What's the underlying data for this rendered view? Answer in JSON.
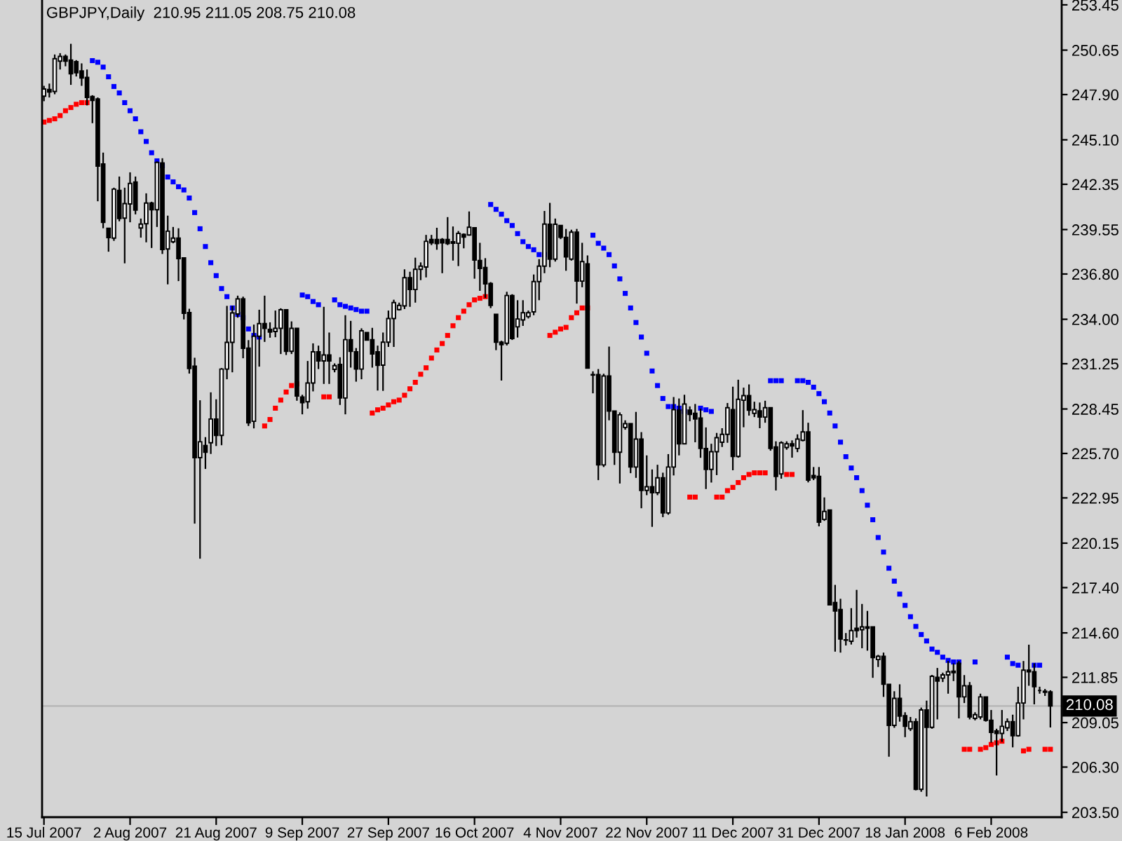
{
  "chart_data": {
    "type": "candlestick",
    "title": "GBPJPY,Daily  210.95 211.05 208.75 210.08",
    "categories": [
      "15 Jul 2007",
      null,
      null,
      null,
      null,
      null,
      null,
      null,
      null,
      null,
      null,
      null,
      null,
      null,
      null,
      null,
      "2 Aug 2007",
      null,
      null,
      null,
      null,
      null,
      null,
      null,
      null,
      null,
      null,
      null,
      null,
      null,
      null,
      null,
      "21 Aug 2007",
      null,
      null,
      null,
      null,
      null,
      null,
      null,
      null,
      null,
      null,
      null,
      null,
      null,
      null,
      null,
      "9 Sep 2007",
      null,
      null,
      null,
      null,
      null,
      null,
      null,
      null,
      null,
      null,
      null,
      null,
      null,
      null,
      null,
      "27 Sep 2007",
      null,
      null,
      null,
      null,
      null,
      null,
      null,
      null,
      null,
      null,
      null,
      null,
      null,
      null,
      null,
      "16 Oct 2007",
      null,
      null,
      null,
      null,
      null,
      null,
      null,
      null,
      null,
      null,
      null,
      null,
      null,
      null,
      null,
      "4 Nov 2007",
      null,
      null,
      null,
      null,
      null,
      null,
      null,
      null,
      null,
      null,
      null,
      null,
      null,
      null,
      null,
      "22 Nov 2007",
      null,
      null,
      null,
      null,
      null,
      null,
      null,
      null,
      null,
      null,
      null,
      null,
      null,
      null,
      null,
      "11 Dec 2007",
      null,
      null,
      null,
      null,
      null,
      null,
      null,
      null,
      null,
      null,
      null,
      null,
      null,
      null,
      null,
      "31 Dec 2007",
      null,
      null,
      null,
      null,
      null,
      null,
      null,
      null,
      null,
      null,
      null,
      null,
      null,
      null,
      null,
      "18 Jan 2008",
      null,
      null,
      null,
      null,
      null,
      null,
      null,
      null,
      null,
      null,
      null,
      null,
      null,
      null,
      null,
      "6 Feb 2008",
      null,
      null,
      null,
      null,
      null,
      null,
      null,
      null,
      null,
      null,
      null
    ],
    "ohlc": [
      [
        247.8,
        248.44,
        247.49,
        248.24
      ],
      [
        248.21,
        248.58,
        247.72,
        248.06
      ],
      [
        248.09,
        250.38,
        247.92,
        250.12
      ],
      [
        249.97,
        250.46,
        249.45,
        250.26
      ],
      [
        250.26,
        250.38,
        249.65,
        249.97
      ],
      [
        250.03,
        251.04,
        248.5,
        249.19
      ],
      [
        249.94,
        250.03,
        249.02,
        249.25
      ],
      [
        249.36,
        249.83,
        248.44,
        248.93
      ],
      [
        248.96,
        249.45,
        247.23,
        247.72
      ],
      [
        247.78,
        247.86,
        246.13,
        247.54
      ],
      [
        247.63,
        247.72,
        241.3,
        243.47
      ],
      [
        243.61,
        244.31,
        239.63,
        240.0
      ],
      [
        239.63,
        239.63,
        238.18,
        239.05
      ],
      [
        239.02,
        242.14,
        238.85,
        242.05
      ],
      [
        241.97,
        242.83,
        240.06,
        240.23
      ],
      [
        240.26,
        242.14,
        237.46,
        241.16
      ],
      [
        241.13,
        243.09,
        240.0,
        242.4
      ],
      [
        242.49,
        242.83,
        240.49,
        240.75
      ],
      [
        239.65,
        240.23,
        239.05,
        239.89
      ],
      [
        239.91,
        241.79,
        238.76,
        241.19
      ],
      [
        241.19,
        241.27,
        238.41,
        240.78
      ],
      [
        240.78,
        243.76,
        239.71,
        243.7
      ],
      [
        243.67,
        243.96,
        238.04,
        238.32
      ],
      [
        238.35,
        240.41,
        236.16,
        239.45
      ],
      [
        238.79,
        239.71,
        238.7,
        239.02
      ],
      [
        239.02,
        239.63,
        236.36,
        237.75
      ],
      [
        237.8,
        237.8,
        233.99,
        234.37
      ],
      [
        234.42,
        234.65,
        230.64,
        230.96
      ],
      [
        231.1,
        231.62,
        221.36,
        225.44
      ],
      [
        225.44,
        228.99,
        219.19,
        226.42
      ],
      [
        226.19,
        226.71,
        224.74,
        225.78
      ],
      [
        226.36,
        229.48,
        225.67,
        227.83
      ],
      [
        227.83,
        229.05,
        226.16,
        226.82
      ],
      [
        226.82,
        230.98,
        226.21,
        230.92
      ],
      [
        230.92,
        234.83,
        230.29,
        232.57
      ],
      [
        232.57,
        234.83,
        230.72,
        234.39
      ],
      [
        234.33,
        235.46,
        234.1,
        235.26
      ],
      [
        235.26,
        235.4,
        231.59,
        232.2
      ],
      [
        232.22,
        232.71,
        227.4,
        227.6
      ],
      [
        227.69,
        233.67,
        227.25,
        232.95
      ],
      [
        232.95,
        234.59,
        231.07,
        233.73
      ],
      [
        233.73,
        235.46,
        232.6,
        233.44
      ],
      [
        233.38,
        233.81,
        232.86,
        233.21
      ],
      [
        233.24,
        234.54,
        232.89,
        233.44
      ],
      [
        233.44,
        234.68,
        231.85,
        234.59
      ],
      [
        234.59,
        234.59,
        231.79,
        232.02
      ],
      [
        232.02,
        233.87,
        231.85,
        233.44
      ],
      [
        233.44,
        233.44,
        228.96,
        229.25
      ],
      [
        229.19,
        229.33,
        228.12,
        228.84
      ],
      [
        228.9,
        231.42,
        228.47,
        230.06
      ],
      [
        230.06,
        232.51,
        229.54,
        231.99
      ],
      [
        231.99,
        232.37,
        230.92,
        231.42
      ],
      [
        231.42,
        234.77,
        230.0,
        231.79
      ],
      [
        231.79,
        233.18,
        230.0,
        231.42
      ],
      [
        230.9,
        231.27,
        230.72,
        231.13
      ],
      [
        231.21,
        231.65,
        228.7,
        229.13
      ],
      [
        229.13,
        234.25,
        228.12,
        232.74
      ],
      [
        232.74,
        233.9,
        231.01,
        232.02
      ],
      [
        231.99,
        232.22,
        230.14,
        230.92
      ],
      [
        230.92,
        233.44,
        230.29,
        233.29
      ],
      [
        233.18,
        233.18,
        232.71,
        232.71
      ],
      [
        232.74,
        233.47,
        231.01,
        231.85
      ],
      [
        231.99,
        232.37,
        229.59,
        231.15
      ],
      [
        231.16,
        233.18,
        229.57,
        232.58
      ],
      [
        232.58,
        234.54,
        232.29,
        234.05
      ],
      [
        234.05,
        235.21,
        232.29,
        235.03
      ],
      [
        234.6,
        235.03,
        234.54,
        234.86
      ],
      [
        234.83,
        237.09,
        234.63,
        236.57
      ],
      [
        236.57,
        236.94,
        234.77,
        235.84
      ],
      [
        235.84,
        237.81,
        235.03,
        237.09
      ],
      [
        237.09,
        237.52,
        236.42,
        237.29
      ],
      [
        237.23,
        239.22,
        236.59,
        238.82
      ],
      [
        238.93,
        239.22,
        238.59,
        238.73
      ],
      [
        238.93,
        239.66,
        238.3,
        238.68
      ],
      [
        238.93,
        239.02,
        236.85,
        238.73
      ],
      [
        238.93,
        240.32,
        238.59,
        238.68
      ],
      [
        238.79,
        239.74,
        237.63,
        238.7
      ],
      [
        238.7,
        239.46,
        237.29,
        239.31
      ],
      [
        239.25,
        239.31,
        238.39,
        239.08
      ],
      [
        239.22,
        240.67,
        239.17,
        239.69
      ],
      [
        239.66,
        239.69,
        236.51,
        237.66
      ],
      [
        237.63,
        238.73,
        235.76,
        237.14
      ],
      [
        237.2,
        237.78,
        235.32,
        236.19
      ],
      [
        236.22,
        236.3,
        234.69,
        234.86
      ],
      [
        234.31,
        234.31,
        232.09,
        232.58
      ],
      [
        232.58,
        232.67,
        230.21,
        232.43
      ],
      [
        232.52,
        235.7,
        232.38,
        235.47
      ],
      [
        235.47,
        235.55,
        232.72,
        232.81
      ],
      [
        233.53,
        235.18,
        232.87,
        234.02
      ],
      [
        233.96,
        235.18,
        233.59,
        234.4
      ],
      [
        234.17,
        234.54,
        234.05,
        234.4
      ],
      [
        234.46,
        236.77,
        234.25,
        236.33
      ],
      [
        236.33,
        237.72,
        235.18,
        237.29
      ],
      [
        237.29,
        240.7,
        236.85,
        239.89
      ],
      [
        239.88,
        241.2,
        237.22,
        237.72
      ],
      [
        237.72,
        240.23,
        237.57,
        239.88
      ],
      [
        239.8,
        239.8,
        238.96,
        239.07
      ],
      [
        239.07,
        239.59,
        237.0,
        237.86
      ],
      [
        237.72,
        239.54,
        237.63,
        239.39
      ],
      [
        239.39,
        239.59,
        234.97,
        236.36
      ],
      [
        236.36,
        238.73,
        235.98,
        237.57
      ],
      [
        237.43,
        237.95,
        230.98,
        230.98
      ],
      [
        230.58,
        230.78,
        229.42,
        230.55
      ],
      [
        230.58,
        230.92,
        224.05,
        224.99
      ],
      [
        224.99,
        230.63,
        224.86,
        230.49
      ],
      [
        230.49,
        232.31,
        227.75,
        228.32
      ],
      [
        228.32,
        228.32,
        224.99,
        225.78
      ],
      [
        225.78,
        228.24,
        223.84,
        228.09
      ],
      [
        227.31,
        227.75,
        227.17,
        227.54
      ],
      [
        227.54,
        227.54,
        224.48,
        224.86
      ],
      [
        224.86,
        228.27,
        224.19,
        226.59
      ],
      [
        226.59,
        227.02,
        222.31,
        223.41
      ],
      [
        223.41,
        225.58,
        223.12,
        223.64
      ],
      [
        223.64,
        224.71,
        221.16,
        223.27
      ],
      [
        223.27,
        225.0,
        223.12,
        224.19
      ],
      [
        224.19,
        224.51,
        221.76,
        222.02
      ],
      [
        222.02,
        225.66,
        221.91,
        224.86
      ],
      [
        224.86,
        229.19,
        224.34,
        228.41
      ],
      [
        228.38,
        229.1,
        225.58,
        226.3
      ],
      [
        226.3,
        229.33,
        226.3,
        228.76
      ],
      [
        228.38,
        228.61,
        227.69,
        228.12
      ],
      [
        228.18,
        228.76,
        226.39,
        227.83
      ],
      [
        227.89,
        228.47,
        225.43,
        226.01
      ],
      [
        226.01,
        227.31,
        223.5,
        224.71
      ],
      [
        224.71,
        226.3,
        223.9,
        225.81
      ],
      [
        225.81,
        226.97,
        224.36,
        226.68
      ],
      [
        226.39,
        227.26,
        226.1,
        226.88
      ],
      [
        226.88,
        228.82,
        226.36,
        228.53
      ],
      [
        228.41,
        229.83,
        224.66,
        225.52
      ],
      [
        225.52,
        230.26,
        225.44,
        229.05
      ],
      [
        228.99,
        229.77,
        227.32,
        229.28
      ],
      [
        229.28,
        229.97,
        228.04,
        228.38
      ],
      [
        228.18,
        228.9,
        227.95,
        228.41
      ],
      [
        228.33,
        228.85,
        227.26,
        227.95
      ],
      [
        227.95,
        228.96,
        227.6,
        228.53
      ],
      [
        228.53,
        228.53,
        225.87,
        226.01
      ],
      [
        226.1,
        226.45,
        223.41,
        224.28
      ],
      [
        224.43,
        226.45,
        224.14,
        226.36
      ],
      [
        226.07,
        226.45,
        225.93,
        226.3
      ],
      [
        226.3,
        226.51,
        225.44,
        226.16
      ],
      [
        226.01,
        226.88,
        225.78,
        226.59
      ],
      [
        226.51,
        228.38,
        226.45,
        227.03
      ],
      [
        227.03,
        227.6,
        223.91,
        224.05
      ],
      [
        224.34,
        224.86,
        224.05,
        224.19
      ],
      [
        224.28,
        224.86,
        221.19,
        221.45
      ],
      [
        221.62,
        222.98,
        221.53,
        222.11
      ],
      [
        222.2,
        222.2,
        216.33,
        216.33
      ],
      [
        216.48,
        217.57,
        213.44,
        215.96
      ],
      [
        216.04,
        216.71,
        213.38,
        214.22
      ],
      [
        214.17,
        214.59,
        213.82,
        214.15
      ],
      [
        214.08,
        216.13,
        213.88,
        214.74
      ],
      [
        214.89,
        217.26,
        214.31,
        214.74
      ],
      [
        214.8,
        216.39,
        213.65,
        214.97
      ],
      [
        214.97,
        215.96,
        213.5,
        214.89
      ],
      [
        214.97,
        214.97,
        211.82,
        213.07
      ],
      [
        212.95,
        213.24,
        212.49,
        213.15
      ],
      [
        213.15,
        213.38,
        210.64,
        211.42
      ],
      [
        211.42,
        211.42,
        206.94,
        208.88
      ],
      [
        208.88,
        210.99,
        208.73,
        210.55
      ],
      [
        210.55,
        211.42,
        209.11,
        209.45
      ],
      [
        209.48,
        209.69,
        208.15,
        208.82
      ],
      [
        208.67,
        209.4,
        208.53,
        209.11
      ],
      [
        209.11,
        209.31,
        204.86,
        204.92
      ],
      [
        204.92,
        209.98,
        204.77,
        209.83
      ],
      [
        209.83,
        210.41,
        204.48,
        208.76
      ],
      [
        208.76,
        212.0,
        208.67,
        211.91
      ],
      [
        211.85,
        212.43,
        209.25,
        211.62
      ],
      [
        211.8,
        212.14,
        211.56,
        212.0
      ],
      [
        212.0,
        212.86,
        210.84,
        212.2
      ],
      [
        212.23,
        212.72,
        211.62,
        212.14
      ],
      [
        212.72,
        212.86,
        209.31,
        210.64
      ],
      [
        210.64,
        211.99,
        210.26,
        211.33
      ],
      [
        211.33,
        211.56,
        209.25,
        209.4
      ],
      [
        209.31,
        209.69,
        209.19,
        209.54
      ],
      [
        209.4,
        210.84,
        209.25,
        210.64
      ],
      [
        210.64,
        210.64,
        209.11,
        209.19
      ],
      [
        209.19,
        209.83,
        207.81,
        208.44
      ],
      [
        208.53,
        208.67,
        205.78,
        208.38
      ],
      [
        208.38,
        209.83,
        207.86,
        208.82
      ],
      [
        208.73,
        209.31,
        208.53,
        209.11
      ],
      [
        209.11,
        209.54,
        207.52,
        208.24
      ],
      [
        208.24,
        211.27,
        208.18,
        210.26
      ],
      [
        210.26,
        212.86,
        209.25,
        212.29
      ],
      [
        212.29,
        213.87,
        211.33,
        212.2
      ],
      [
        212.2,
        212.72,
        210.18,
        211.27
      ],
      [
        211.04,
        211.27,
        210.84,
        211.04
      ],
      [
        210.99,
        211.13,
        210.7,
        210.93
      ],
      [
        210.95,
        211.05,
        208.75,
        210.08
      ]
    ],
    "series": [
      {
        "type": "scatter",
        "color": "#0000ff",
        "values": [
          null,
          null,
          null,
          null,
          null,
          null,
          null,
          null,
          null,
          250.0,
          249.9,
          249.6,
          249.0,
          248.4,
          248.0,
          247.4,
          246.9,
          246.4,
          245.6,
          245.0,
          244.3,
          243.8,
          243.5,
          242.8,
          242.5,
          242.2,
          242.0,
          241.5,
          240.6,
          239.6,
          238.5,
          237.5,
          236.7,
          235.9,
          235.4,
          234.7,
          234.3,
          234.1,
          233.4,
          233.0,
          232.9,
          null,
          null,
          null,
          null,
          null,
          null,
          null,
          235.5,
          235.4,
          235.1,
          234.9,
          null,
          null,
          235.2,
          234.9,
          234.8,
          234.7,
          234.6,
          234.5,
          234.5,
          null,
          null,
          null,
          null,
          null,
          null,
          null,
          null,
          null,
          null,
          null,
          null,
          null,
          null,
          null,
          null,
          null,
          null,
          null,
          null,
          null,
          null,
          241.1,
          240.8,
          240.5,
          240.1,
          239.8,
          239.3,
          238.8,
          238.5,
          238.3,
          238.0,
          238.0,
          null,
          null,
          null,
          null,
          null,
          null,
          null,
          null,
          239.2,
          238.7,
          238.4,
          238.0,
          237.3,
          236.5,
          235.6,
          234.7,
          233.8,
          232.9,
          231.9,
          230.8,
          229.9,
          229.1,
          228.6,
          228.6,
          228.5,
          228.3,
          null,
          null,
          228.5,
          228.4,
          228.3,
          null,
          null,
          null,
          null,
          null,
          null,
          null,
          null,
          null,
          null,
          230.2,
          230.2,
          230.2,
          null,
          null,
          230.2,
          230.2,
          230.1,
          229.8,
          229.4,
          228.9,
          228.2,
          227.4,
          226.4,
          225.5,
          224.8,
          224.2,
          223.4,
          222.5,
          221.6,
          220.5,
          219.6,
          218.6,
          217.8,
          217.0,
          216.3,
          215.6,
          215.0,
          214.5,
          214.1,
          213.6,
          213.4,
          213.1,
          212.9,
          212.8,
          212.8,
          null,
          null,
          212.8,
          null,
          null,
          null,
          null,
          null,
          213.1,
          212.7,
          212.6,
          null,
          null,
          212.6,
          212.6,
          null,
          null
        ]
      },
      {
        "type": "scatter",
        "color": "#ff0000",
        "values": [
          246.2,
          246.3,
          246.4,
          246.6,
          246.9,
          247.1,
          247.3,
          247.4,
          247.4,
          null,
          null,
          null,
          null,
          null,
          null,
          null,
          null,
          null,
          null,
          null,
          null,
          null,
          null,
          null,
          null,
          null,
          null,
          null,
          null,
          null,
          null,
          null,
          null,
          null,
          null,
          null,
          null,
          null,
          null,
          null,
          null,
          227.4,
          227.8,
          228.5,
          229.0,
          229.5,
          229.9,
          230.0,
          null,
          null,
          null,
          null,
          229.2,
          229.2,
          null,
          null,
          null,
          null,
          null,
          null,
          null,
          228.2,
          228.4,
          228.5,
          228.7,
          228.9,
          229.0,
          229.3,
          229.7,
          230.1,
          230.6,
          231.0,
          231.6,
          232.1,
          232.5,
          233.0,
          233.6,
          234.1,
          234.5,
          234.9,
          235.2,
          235.3,
          235.4,
          null,
          null,
          null,
          null,
          null,
          null,
          null,
          null,
          null,
          null,
          null,
          233.0,
          233.2,
          233.4,
          233.5,
          234.1,
          234.4,
          234.7,
          234.7,
          null,
          null,
          null,
          null,
          null,
          null,
          null,
          null,
          null,
          null,
          null,
          null,
          null,
          null,
          null,
          null,
          null,
          null,
          223.0,
          223.0,
          null,
          null,
          null,
          223.0,
          223.0,
          223.4,
          223.6,
          223.9,
          224.2,
          224.4,
          224.5,
          224.5,
          224.5,
          null,
          null,
          null,
          224.4,
          224.4,
          null,
          null,
          null,
          null,
          null,
          null,
          null,
          null,
          null,
          null,
          null,
          null,
          null,
          null,
          null,
          null,
          null,
          null,
          null,
          null,
          null,
          null,
          null,
          null,
          null,
          null,
          null,
          null,
          null,
          null,
          null,
          207.4,
          207.4,
          null,
          207.4,
          207.5,
          207.7,
          207.8,
          207.9,
          null,
          null,
          null,
          207.3,
          207.4,
          null,
          null,
          207.4,
          207.4
        ]
      }
    ],
    "marker": "square",
    "ylim": [
      203.2,
      253.75
    ],
    "yticks": [
      253.45,
      250.65,
      {
        "value": 247.9,
        "label": "247.90"
      },
      {
        "value": 245.1,
        "label": "245.10"
      },
      242.35,
      239.55,
      {
        "value": 236.8,
        "label": "236.80"
      },
      {
        "value": 234.0,
        "label": "234.00"
      },
      231.25,
      228.45,
      {
        "value": 225.7,
        "label": "225.70"
      },
      222.95,
      220.15,
      {
        "value": 217.4,
        "label": "217.40"
      },
      {
        "value": 214.6,
        "label": "214.60"
      },
      211.85,
      209.05,
      {
        "value": 206.3,
        "label": "206.30"
      },
      {
        "value": 203.5,
        "label": "203.50"
      }
    ],
    "ref_lines": [
      {
        "axis": "y",
        "value": 210.08,
        "label": "210.08",
        "color": "#b4b4b4"
      }
    ]
  }
}
